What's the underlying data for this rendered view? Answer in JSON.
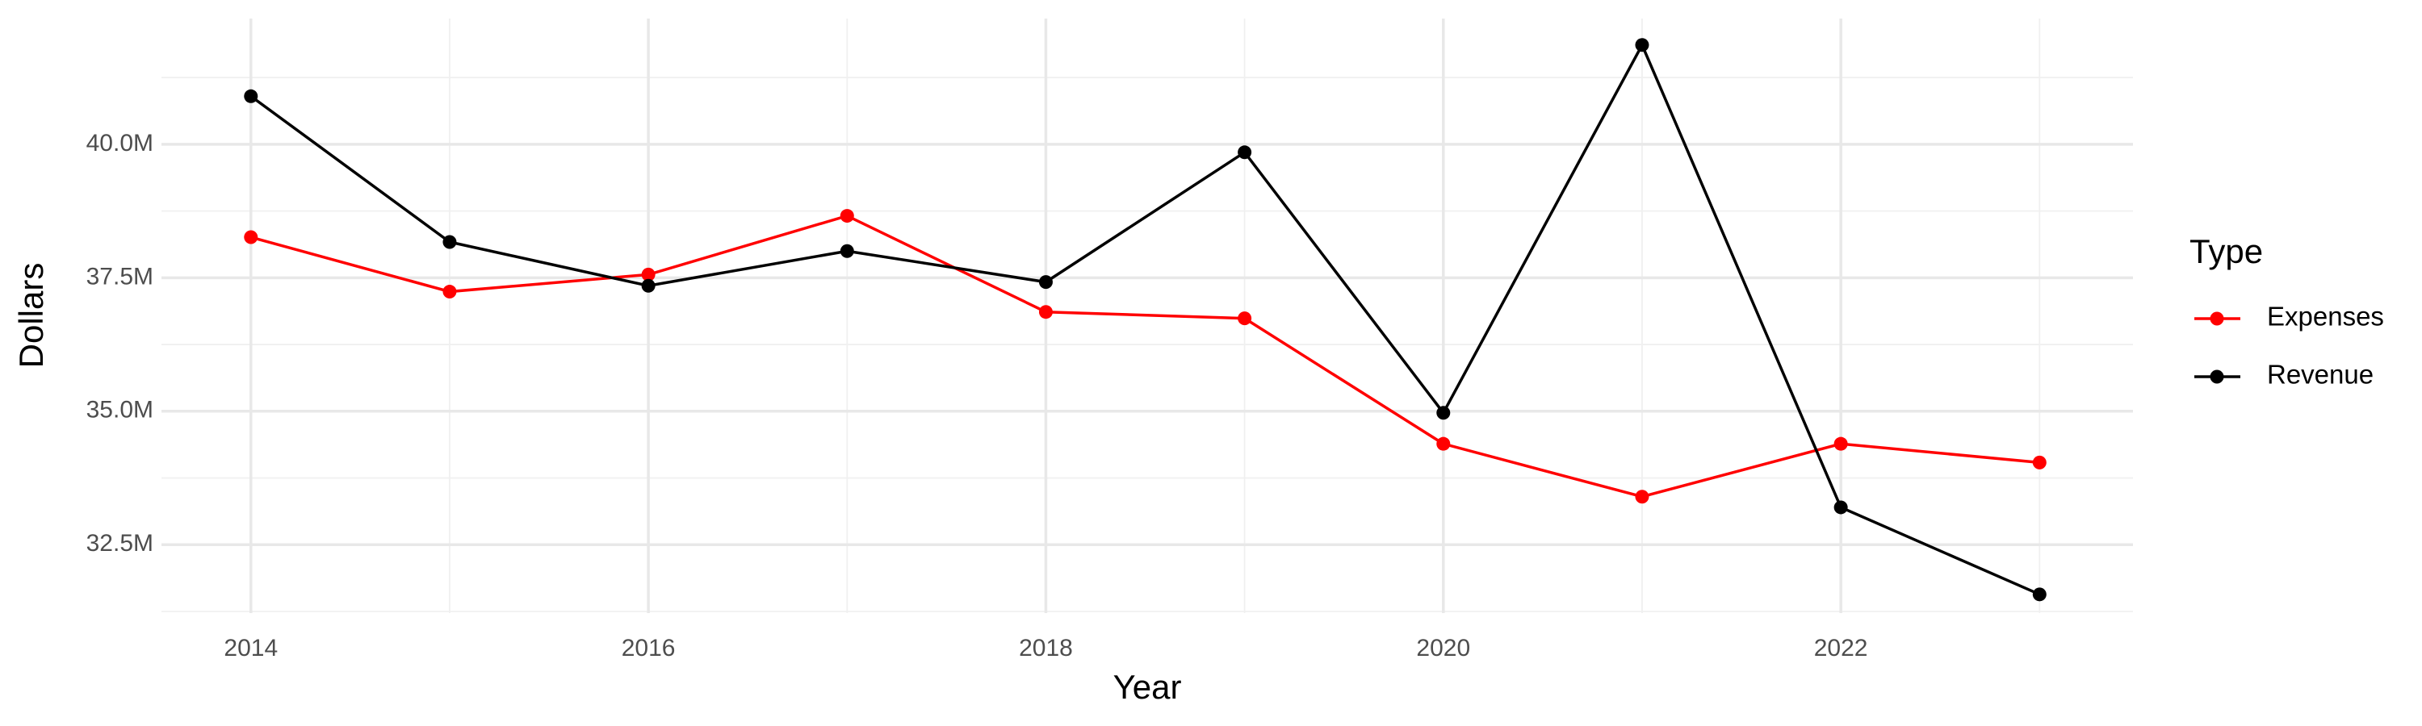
{
  "chart_data": {
    "type": "line",
    "x_label": "Year",
    "y_label": "Dollars",
    "legend_title": "Type",
    "legend": "right",
    "grid": true,
    "x": [
      2014,
      2015,
      2016,
      2017,
      2018,
      2019,
      2020,
      2021,
      2022,
      2023
    ],
    "series": [
      {
        "name": "Expenses",
        "color": "#ff0000",
        "values": [
          38260000,
          37240000,
          37560000,
          38660000,
          36860000,
          36740000,
          34390000,
          33400000,
          34390000,
          34040000
        ]
      },
      {
        "name": "Revenue",
        "color": "#000000",
        "values": [
          40900000,
          38170000,
          37350000,
          38000000,
          37420000,
          39850000,
          34970000,
          41860000,
          33200000,
          31570000
        ]
      }
    ],
    "xlim": [
      2013.55,
      2023.47
    ],
    "xticks": [
      2014,
      2016,
      2018,
      2020,
      2022
    ],
    "ylim": [
      31220000,
      42355000
    ],
    "yticks": [
      {
        "value": 32500000,
        "label": "32.5M"
      },
      {
        "value": 35000000,
        "label": "35.0M"
      },
      {
        "value": 37500000,
        "label": "37.5M"
      },
      {
        "value": 40000000,
        "label": "40.0M"
      }
    ]
  }
}
